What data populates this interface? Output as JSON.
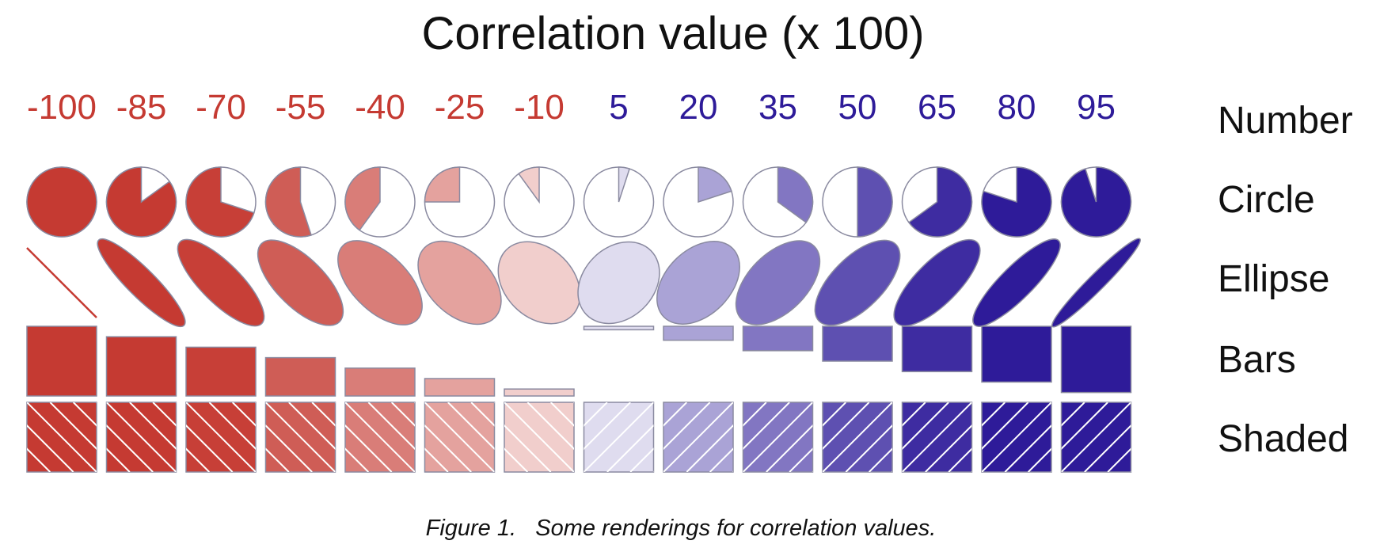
{
  "title": "Correlation value (x 100)",
  "values": [
    -100,
    -85,
    -70,
    -55,
    -40,
    -25,
    -10,
    5,
    20,
    35,
    50,
    65,
    80,
    95
  ],
  "value_labels": [
    "-100",
    "-85",
    "-70",
    "-55",
    "-40",
    "-25",
    "-10",
    "5",
    "20",
    "35",
    "50",
    "65",
    "80",
    "95"
  ],
  "rows": [
    {
      "key": "number",
      "label": "Number"
    },
    {
      "key": "circle",
      "label": "Circle"
    },
    {
      "key": "ellipse",
      "label": "Ellipse"
    },
    {
      "key": "bars",
      "label": "Bars"
    },
    {
      "key": "shaded",
      "label": "Shaded"
    }
  ],
  "colors": {
    "negative": "#c53a32",
    "positive": "#2e1b99",
    "neutral": "#ffffff",
    "outline": "#8a8aa0",
    "hatch": "#ffffff"
  },
  "caption": "Figure 1.   Some renderings for correlation values."
}
